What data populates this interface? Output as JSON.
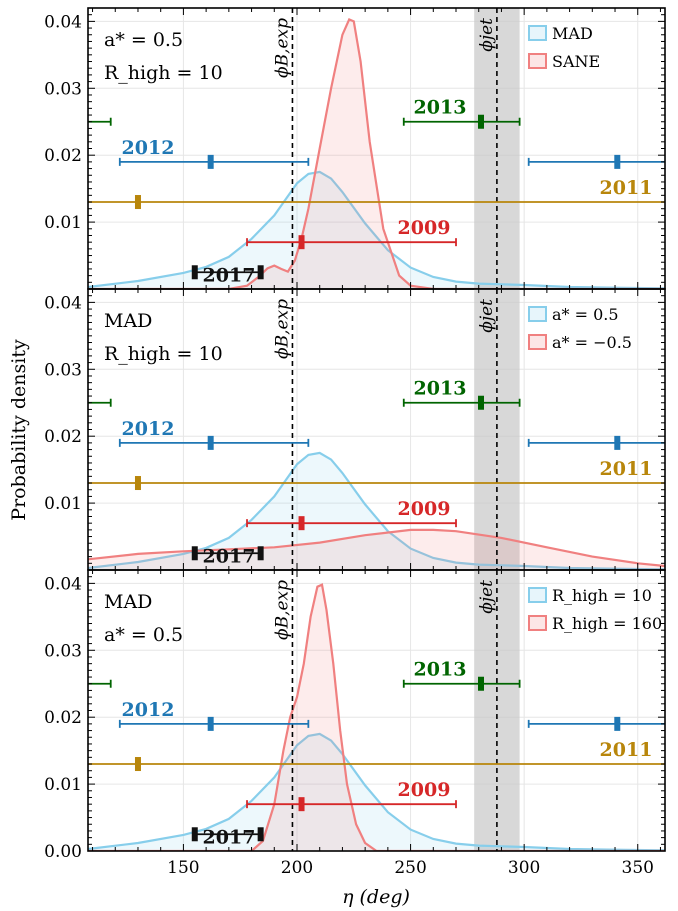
{
  "figure": {
    "xlabel": "η (deg)",
    "ylabel": "Probability density"
  },
  "chart_data": [
    {
      "type": "area",
      "title": "",
      "xlabel": "η (deg)",
      "ylabel": "Probability density",
      "xlim": [
        108,
        362
      ],
      "ylim": [
        0,
        0.042
      ],
      "x_ticks": [
        "150",
        "200",
        "250",
        "300",
        "350"
      ],
      "y_ticks": [
        "",
        "0.01",
        "0.02",
        "0.03",
        "0.04"
      ],
      "grid": true,
      "legend_position": "top-right",
      "annotations": [
        "a* = 0.5",
        "R_high = 10"
      ],
      "series": [
        {
          "name": "MAD",
          "color": "#87CEEB",
          "x": [
            108,
            130,
            150,
            160,
            170,
            180,
            190,
            200,
            205,
            210,
            215,
            220,
            230,
            240,
            250,
            260,
            270,
            280,
            290,
            300,
            320,
            340,
            362
          ],
          "y": [
            0.0003,
            0.0012,
            0.0024,
            0.0033,
            0.0048,
            0.0075,
            0.011,
            0.0158,
            0.0172,
            0.0175,
            0.0165,
            0.0145,
            0.0098,
            0.0058,
            0.0032,
            0.0018,
            0.0011,
            0.0008,
            0.0007,
            0.0006,
            0.0003,
            0.0002,
            0.0001
          ]
        },
        {
          "name": "SANE",
          "color": "#F08080",
          "x": [
            108,
            170,
            178,
            183,
            187,
            190,
            193,
            196,
            199,
            202,
            205,
            210,
            215,
            220,
            223,
            225,
            228,
            232,
            238,
            245,
            250,
            260,
            362
          ],
          "y": [
            0,
            0,
            0.0005,
            0.0018,
            0.0031,
            0.0035,
            0.003,
            0.0026,
            0.0042,
            0.0075,
            0.012,
            0.021,
            0.03,
            0.038,
            0.0403,
            0.04,
            0.034,
            0.022,
            0.009,
            0.002,
            0.0005,
            0,
            0
          ]
        }
      ],
      "vertical_lines": [
        {
          "x": 198,
          "label": "ϕB,exp"
        },
        {
          "x": 288,
          "label": "ϕjet"
        }
      ],
      "jet_band": [
        278,
        298
      ],
      "epochs": [
        {
          "label": "2017",
          "color": "#111111",
          "y": 0.0025,
          "lo": 155,
          "hi": 184,
          "marker": 155,
          "marker2": 184
        },
        {
          "label": "2009",
          "color": "#D62728",
          "y": 0.007,
          "lo": 178,
          "hi": 270,
          "marker": 202
        },
        {
          "label": "2011",
          "color": "#B8860B",
          "y": 0.013,
          "lo": 108,
          "hi": 362,
          "marker": 130
        },
        {
          "label": "2012",
          "color": "#1F77B4",
          "y": 0.019,
          "lo": 122,
          "hi": 205,
          "marker": 162,
          "wrap_lo": 302,
          "wrap_marker": 341
        },
        {
          "label": "2013",
          "color": "#006400",
          "y": 0.025,
          "lo": 247,
          "hi": 298,
          "marker": 281,
          "wrap_hi": 118
        }
      ]
    },
    {
      "type": "area",
      "title": "",
      "xlabel": "η (deg)",
      "ylabel": "Probability density",
      "xlim": [
        108,
        362
      ],
      "ylim": [
        0,
        0.042
      ],
      "x_ticks": [
        "150",
        "200",
        "250",
        "300",
        "350"
      ],
      "y_ticks": [
        "",
        "0.01",
        "0.02",
        "0.03",
        "0.04"
      ],
      "grid": true,
      "legend_position": "top-right",
      "annotations": [
        "MAD",
        "R_high = 10"
      ],
      "series": [
        {
          "name": "a* = 0.5",
          "color": "#87CEEB",
          "x": [
            108,
            130,
            150,
            160,
            170,
            180,
            190,
            200,
            205,
            210,
            215,
            220,
            230,
            240,
            250,
            260,
            270,
            280,
            290,
            300,
            320,
            340,
            362
          ],
          "y": [
            0.0003,
            0.0012,
            0.0024,
            0.0033,
            0.0048,
            0.0075,
            0.011,
            0.0158,
            0.0172,
            0.0175,
            0.0165,
            0.0145,
            0.0098,
            0.0058,
            0.0032,
            0.0018,
            0.0011,
            0.0008,
            0.0007,
            0.0006,
            0.0003,
            0.0002,
            0.0001
          ]
        },
        {
          "name": "a* = −0.5",
          "color": "#F08080",
          "x": [
            108,
            130,
            150,
            170,
            190,
            210,
            230,
            250,
            260,
            270,
            290,
            310,
            330,
            350,
            362
          ],
          "y": [
            0.0016,
            0.0024,
            0.0028,
            0.0031,
            0.0034,
            0.0041,
            0.0052,
            0.006,
            0.006,
            0.0058,
            0.0048,
            0.0034,
            0.002,
            0.001,
            0.0006
          ]
        }
      ],
      "vertical_lines": [
        {
          "x": 198,
          "label": "ϕB,exp"
        },
        {
          "x": 288,
          "label": "ϕjet"
        }
      ],
      "jet_band": [
        278,
        298
      ],
      "epochs": [
        {
          "label": "2017",
          "color": "#111111",
          "y": 0.0025,
          "lo": 155,
          "hi": 184,
          "marker": 155,
          "marker2": 184
        },
        {
          "label": "2009",
          "color": "#D62728",
          "y": 0.007,
          "lo": 178,
          "hi": 270,
          "marker": 202
        },
        {
          "label": "2011",
          "color": "#B8860B",
          "y": 0.013,
          "lo": 108,
          "hi": 362,
          "marker": 130
        },
        {
          "label": "2012",
          "color": "#1F77B4",
          "y": 0.019,
          "lo": 122,
          "hi": 205,
          "marker": 162,
          "wrap_lo": 302,
          "wrap_marker": 341
        },
        {
          "label": "2013",
          "color": "#006400",
          "y": 0.025,
          "lo": 247,
          "hi": 298,
          "marker": 281,
          "wrap_hi": 118
        }
      ]
    },
    {
      "type": "area",
      "title": "",
      "xlabel": "η (deg)",
      "ylabel": "Probability density",
      "xlim": [
        108,
        362
      ],
      "ylim": [
        0,
        0.042
      ],
      "x_ticks": [
        "150",
        "200",
        "250",
        "300",
        "350"
      ],
      "y_ticks": [
        "0.00",
        "0.01",
        "0.02",
        "0.03",
        "0.04"
      ],
      "grid": true,
      "legend_position": "top-right",
      "annotations": [
        "MAD",
        "a* = 0.5"
      ],
      "series": [
        {
          "name": "R_high = 10",
          "color": "#87CEEB",
          "x": [
            108,
            130,
            150,
            160,
            170,
            180,
            190,
            200,
            205,
            210,
            215,
            220,
            230,
            240,
            250,
            260,
            270,
            280,
            290,
            300,
            320,
            340,
            362
          ],
          "y": [
            0.0003,
            0.0012,
            0.0024,
            0.0033,
            0.0048,
            0.0075,
            0.011,
            0.0158,
            0.0172,
            0.0175,
            0.0165,
            0.0145,
            0.0098,
            0.0058,
            0.0032,
            0.0018,
            0.0011,
            0.0008,
            0.0007,
            0.0006,
            0.0003,
            0.0002,
            0.0001
          ]
        },
        {
          "name": "R_high = 160",
          "color": "#F08080",
          "x": [
            108,
            180,
            185,
            190,
            194,
            197,
            200,
            203,
            206,
            209,
            211,
            213,
            216,
            219,
            222,
            226,
            230,
            235,
            362
          ],
          "y": [
            0,
            0,
            0.0015,
            0.007,
            0.015,
            0.02,
            0.023,
            0.028,
            0.035,
            0.0395,
            0.0398,
            0.036,
            0.028,
            0.018,
            0.01,
            0.004,
            0.0012,
            0,
            0
          ]
        }
      ],
      "vertical_lines": [
        {
          "x": 198,
          "label": "ϕB,exp"
        },
        {
          "x": 288,
          "label": "ϕjet"
        }
      ],
      "jet_band": [
        278,
        298
      ],
      "epochs": [
        {
          "label": "2017",
          "color": "#111111",
          "y": 0.0025,
          "lo": 155,
          "hi": 184,
          "marker": 155,
          "marker2": 184
        },
        {
          "label": "2009",
          "color": "#D62728",
          "y": 0.007,
          "lo": 178,
          "hi": 270,
          "marker": 202
        },
        {
          "label": "2011",
          "color": "#B8860B",
          "y": 0.013,
          "lo": 108,
          "hi": 362,
          "marker": 130
        },
        {
          "label": "2012",
          "color": "#1F77B4",
          "y": 0.019,
          "lo": 122,
          "hi": 205,
          "marker": 162,
          "wrap_lo": 302,
          "wrap_marker": 341
        },
        {
          "label": "2013",
          "color": "#006400",
          "y": 0.025,
          "lo": 247,
          "hi": 298,
          "marker": 281,
          "wrap_hi": 118
        }
      ]
    }
  ]
}
